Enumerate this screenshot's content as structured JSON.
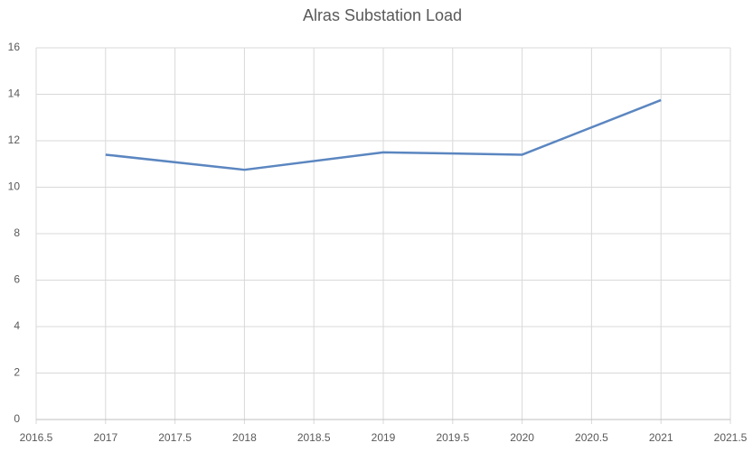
{
  "chart_data": {
    "type": "line",
    "title": "Alras Substation Load",
    "x": [
      2017,
      2018,
      2019,
      2020,
      2021
    ],
    "values": [
      11.4,
      10.75,
      11.5,
      11.4,
      13.75
    ],
    "color": "#5b86c0",
    "xlim": [
      2016.5,
      2021.5
    ],
    "xticks": [
      2016.5,
      2017,
      2017.5,
      2018,
      2018.5,
      2019,
      2019.5,
      2020,
      2020.5,
      2021,
      2021.5
    ],
    "ylim": [
      0,
      16
    ],
    "yticks": [
      0,
      2,
      4,
      6,
      8,
      10,
      12,
      14,
      16
    ],
    "grid": true
  }
}
